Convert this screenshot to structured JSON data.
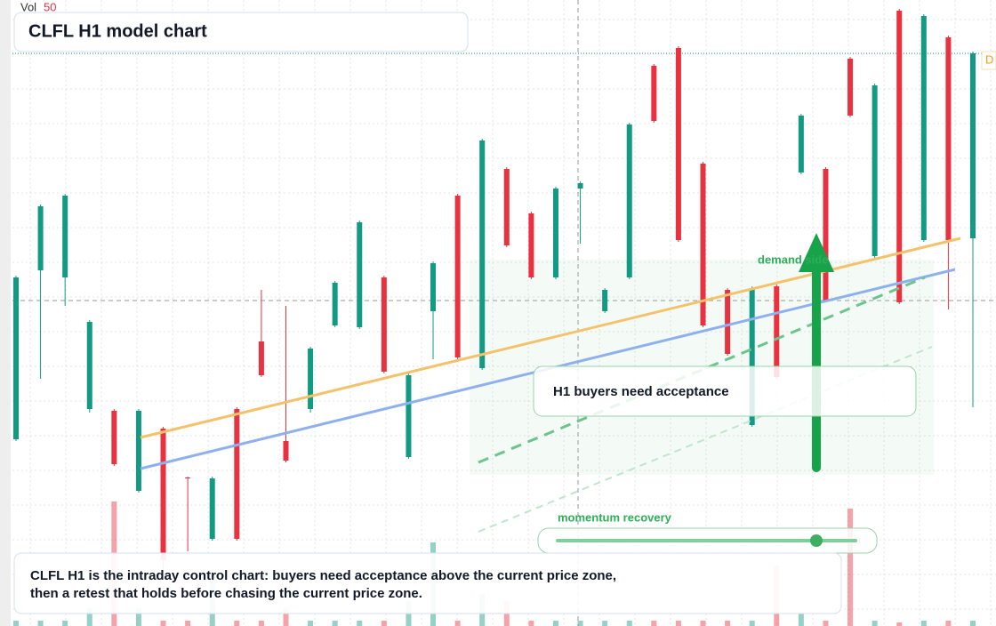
{
  "chart_data": {
    "type": "candlestick",
    "title": "CLFL H1 model chart",
    "volume_label": "Vol",
    "volume_length": 50,
    "last_price_tag": "D",
    "zone_label": "demand side",
    "callout": "H1 buyers need acceptance",
    "momentum_label": "momentum recovery",
    "footer": [
      "CLFL H1 is the intraday control chart: buyers need acceptance above the current price zone,",
      "then a retest that holds before chasing the current price zone."
    ],
    "open": [
      210,
      400,
      392,
      244,
      242,
      152,
      222,
      167,
      98,
      244,
      320,
      208,
      244,
      338,
      336,
      392,
      190,
      354,
      484,
      290,
      514,
      464,
      392,
      492,
      354,
      392,
      630,
      650,
      520,
      378,
      226,
      382,
      510,
      514,
      638,
      416,
      692,
      434,
      662,
      436
    ],
    "high": [
      394,
      474,
      486,
      344,
      244,
      244,
      224,
      168,
      168,
      246,
      378,
      360,
      314,
      388,
      456,
      394,
      284,
      410,
      486,
      548,
      516,
      466,
      494,
      500,
      380,
      566,
      632,
      652,
      522,
      380,
      382,
      384,
      576,
      516,
      640,
      610,
      694,
      688,
      664,
      646
    ],
    "low": [
      208,
      278,
      360,
      240,
      180,
      150,
      60,
      84,
      96,
      96,
      280,
      184,
      240,
      336,
      334,
      284,
      188,
      300,
      300,
      288,
      426,
      390,
      390,
      430,
      352,
      390,
      566,
      432,
      336,
      304,
      224,
      278,
      508,
      364,
      572,
      414,
      362,
      432,
      356,
      246
    ],
    "close": [
      392,
      472,
      484,
      342,
      182,
      242,
      74,
      166,
      166,
      98,
      282,
      186,
      312,
      386,
      454,
      286,
      282,
      408,
      302,
      546,
      428,
      392,
      492,
      498,
      378,
      564,
      568,
      434,
      338,
      306,
      380,
      280,
      574,
      366,
      574,
      608,
      364,
      686,
      434,
      644
    ],
    "volume": [
      6,
      6,
      6,
      20,
      140,
      20,
      6,
      6,
      60,
      6,
      6,
      20,
      6,
      6,
      6,
      6,
      28,
      94,
      6,
      36,
      28,
      6,
      6,
      6,
      6,
      6,
      6,
      6,
      6,
      6,
      6,
      68,
      14,
      6,
      132,
      6,
      4,
      6,
      6,
      6
    ],
    "ylim": [
      0,
      704
    ],
    "up_color": "#139a82",
    "down_color": "#e8323f",
    "grid": true
  }
}
